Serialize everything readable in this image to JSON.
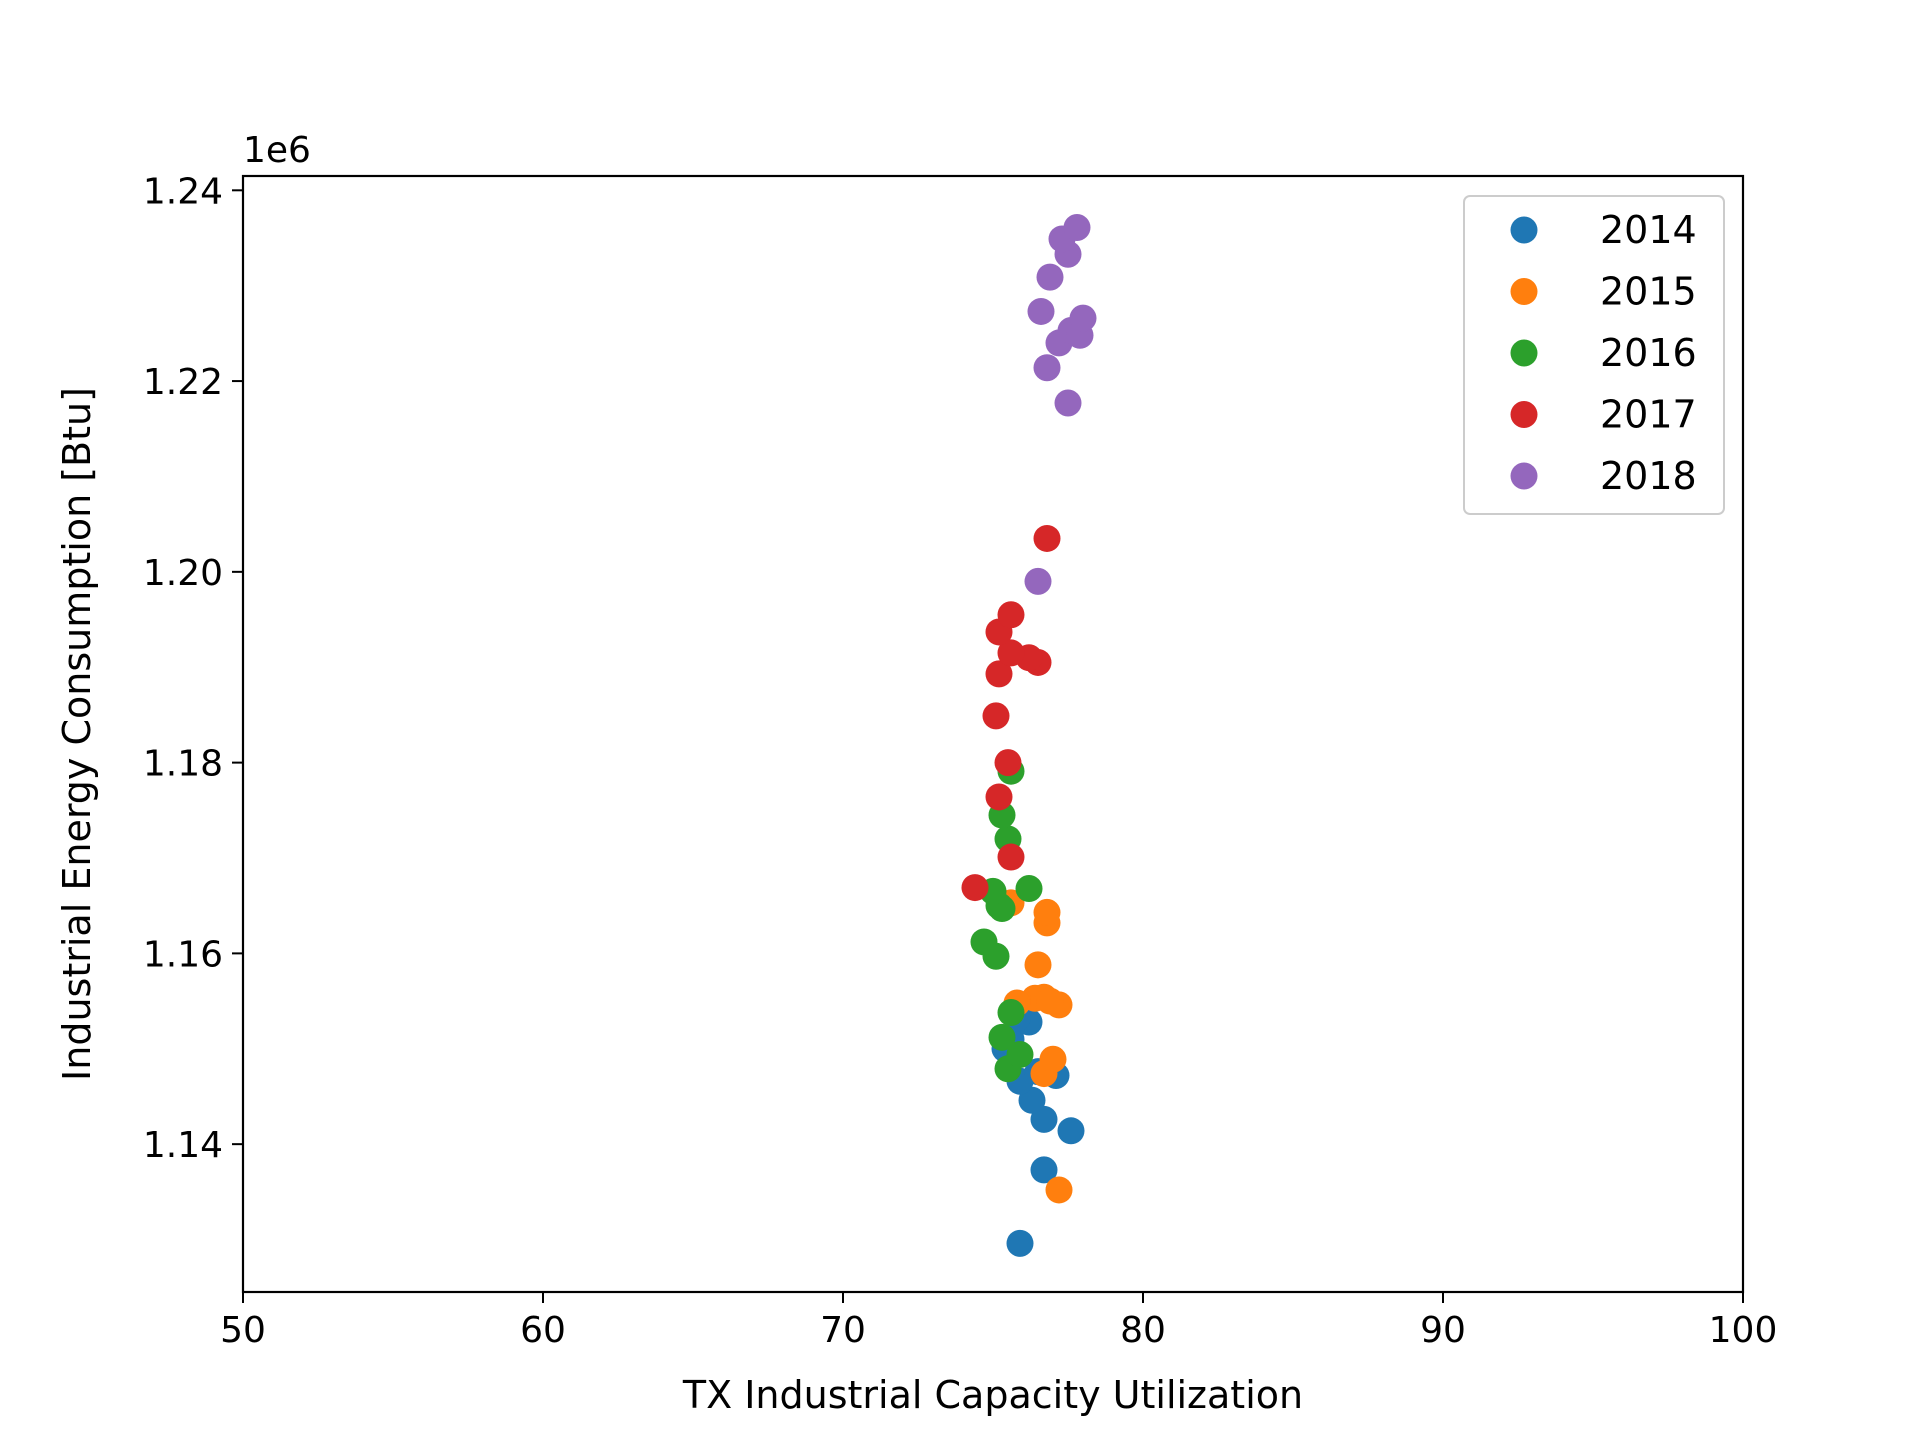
{
  "chart_data": {
    "type": "scatter",
    "title": "",
    "xlabel": "TX Industrial Capacity Utilization",
    "ylabel": "Industrial Energy Consumption [Btu]",
    "y_offset_label": "1e6",
    "xlim": [
      50,
      100
    ],
    "ylim": [
      1.1245,
      1.2415
    ],
    "x_ticks": [
      50,
      60,
      70,
      80,
      90,
      100
    ],
    "x_tick_labels": [
      "50",
      "60",
      "70",
      "80",
      "90",
      "100"
    ],
    "y_ticks": [
      1.14,
      1.16,
      1.18,
      1.2,
      1.22,
      1.24
    ],
    "y_tick_labels": [
      "1.14",
      "1.16",
      "1.18",
      "1.20",
      "1.22",
      "1.24"
    ],
    "grid": false,
    "legend_position": "top-right",
    "series": [
      {
        "name": "2014",
        "color": "#1f77b4",
        "points": [
          [
            75.9,
            1.1296
          ],
          [
            76.7,
            1.1373
          ],
          [
            77.6,
            1.1414
          ],
          [
            76.7,
            1.1426
          ],
          [
            76.3,
            1.1446
          ],
          [
            75.9,
            1.1466
          ],
          [
            77.1,
            1.1472
          ],
          [
            76.5,
            1.1476
          ],
          [
            75.4,
            1.15
          ],
          [
            75.6,
            1.151
          ],
          [
            76.2,
            1.1528
          ],
          [
            75.8,
            1.1532
          ]
        ]
      },
      {
        "name": "2015",
        "color": "#ff7f0e",
        "points": [
          [
            77.2,
            1.1352
          ],
          [
            76.7,
            1.1474
          ],
          [
            77.0,
            1.1489
          ],
          [
            76.4,
            1.1553
          ],
          [
            76.7,
            1.1554
          ],
          [
            77.2,
            1.1546
          ],
          [
            75.8,
            1.1548
          ],
          [
            76.9,
            1.155
          ],
          [
            76.5,
            1.1588
          ],
          [
            76.8,
            1.1632
          ],
          [
            76.8,
            1.1643
          ],
          [
            75.6,
            1.1653
          ]
        ]
      },
      {
        "name": "2016",
        "color": "#2ca02c",
        "points": [
          [
            75.5,
            1.1479
          ],
          [
            75.9,
            1.1494
          ],
          [
            75.3,
            1.1512
          ],
          [
            75.6,
            1.1538
          ],
          [
            75.1,
            1.1597
          ],
          [
            74.7,
            1.1612
          ],
          [
            75.3,
            1.1647
          ],
          [
            75.2,
            1.165
          ],
          [
            75.0,
            1.1665
          ],
          [
            76.2,
            1.1668
          ],
          [
            75.5,
            1.172
          ],
          [
            75.3,
            1.1745
          ],
          [
            75.6,
            1.1791
          ]
        ]
      },
      {
        "name": "2017",
        "color": "#d62728",
        "points": [
          [
            74.4,
            1.1669
          ],
          [
            75.6,
            1.1701
          ],
          [
            75.2,
            1.1764
          ],
          [
            75.5,
            1.18
          ],
          [
            75.1,
            1.1849
          ],
          [
            75.2,
            1.1893
          ],
          [
            76.5,
            1.1905
          ],
          [
            76.2,
            1.191
          ],
          [
            75.6,
            1.1915
          ],
          [
            75.2,
            1.1937
          ],
          [
            75.6,
            1.1955
          ],
          [
            76.8,
            1.2035
          ]
        ]
      },
      {
        "name": "2018",
        "color": "#9467bd",
        "points": [
          [
            76.5,
            1.199
          ],
          [
            77.5,
            1.2177
          ],
          [
            76.8,
            1.2214
          ],
          [
            77.2,
            1.224
          ],
          [
            77.6,
            1.2253
          ],
          [
            77.9,
            1.2248
          ],
          [
            78.0,
            1.2266
          ],
          [
            76.6,
            1.2273
          ],
          [
            76.9,
            1.2309
          ],
          [
            77.5,
            1.2333
          ],
          [
            77.3,
            1.2349
          ],
          [
            77.8,
            1.2361
          ]
        ]
      }
    ]
  }
}
